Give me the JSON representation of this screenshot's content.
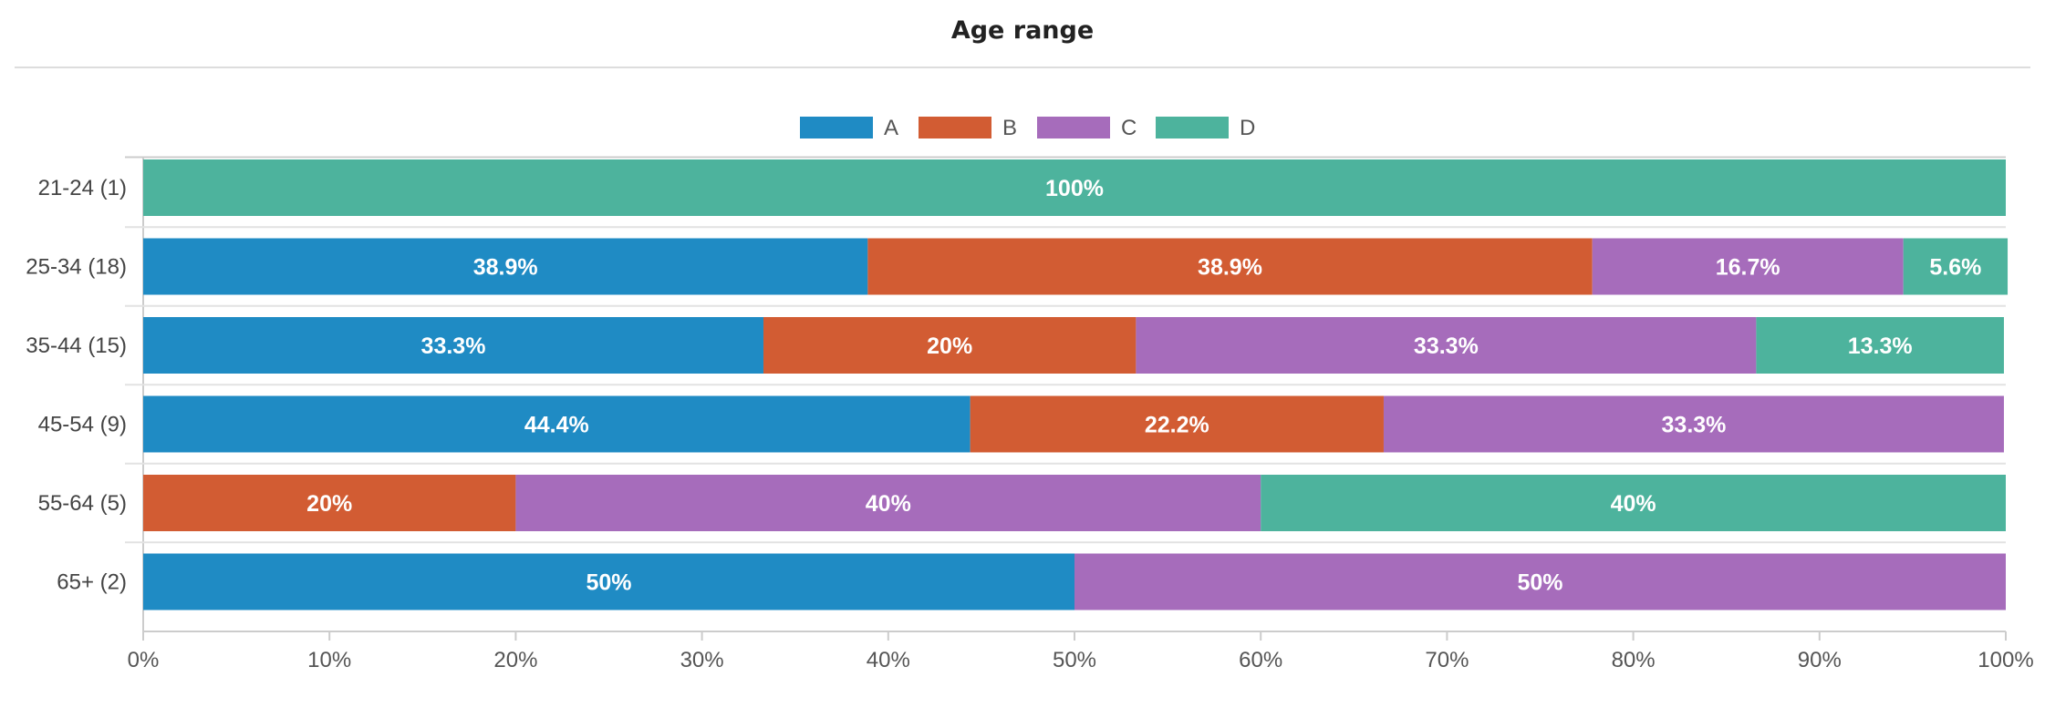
{
  "title": "Age range",
  "chart_data": {
    "type": "bar",
    "orientation": "horizontal",
    "stacked": "percent",
    "title": "Age range",
    "categories": [
      "21-24 (1)",
      "25-34 (18)",
      "35-44 (15)",
      "45-54 (9)",
      "55-64 (5)",
      "65+ (2)"
    ],
    "series": [
      {
        "name": "A",
        "color": "#1f8bc4",
        "values": [
          0,
          38.9,
          33.3,
          44.4,
          0,
          50
        ]
      },
      {
        "name": "B",
        "color": "#d25c33",
        "values": [
          0,
          38.9,
          20,
          22.2,
          20,
          0
        ]
      },
      {
        "name": "C",
        "color": "#a66cbb",
        "values": [
          0,
          16.7,
          33.3,
          33.3,
          40,
          50
        ]
      },
      {
        "name": "D",
        "color": "#4db39d",
        "values": [
          100,
          5.6,
          13.3,
          0,
          40,
          0
        ]
      }
    ],
    "data_labels": [
      [
        "",
        "",
        "",
        "100%"
      ],
      [
        "38.9%",
        "38.9%",
        "16.7%",
        "5.6%"
      ],
      [
        "33.3%",
        "20%",
        "33.3%",
        "13.3%"
      ],
      [
        "44.4%",
        "22.2%",
        "33.3%",
        ""
      ],
      [
        "",
        "20%",
        "40%",
        "40%"
      ],
      [
        "50%",
        "",
        "50%",
        ""
      ]
    ],
    "xlim": [
      0,
      100
    ],
    "x_ticks": [
      "0%",
      "10%",
      "20%",
      "30%",
      "40%",
      "50%",
      "60%",
      "70%",
      "80%",
      "90%",
      "100%"
    ],
    "legend": [
      "A",
      "B",
      "C",
      "D"
    ],
    "legend_position": "top-center",
    "grid": "horizontal-separators"
  }
}
